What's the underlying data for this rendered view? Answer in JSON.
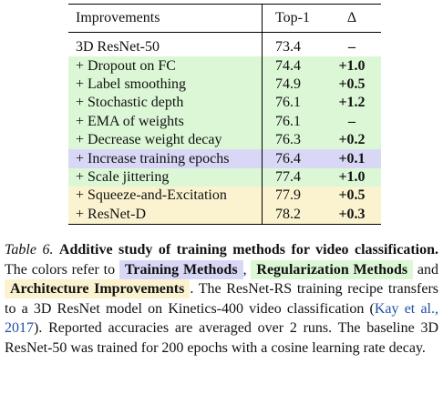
{
  "table": {
    "header": [
      "Improvements",
      "Top-1",
      "Δ"
    ],
    "rows": [
      {
        "cells": [
          "3D ResNet-50",
          73.4,
          "–"
        ],
        "color": "#ffffff"
      },
      {
        "cells": [
          "+ Dropout on FC",
          74.4,
          "+1.0"
        ],
        "color": "#dcf7d6"
      },
      {
        "cells": [
          "+ Label smoothing",
          74.9,
          "+0.5"
        ],
        "color": "#dcf7d6"
      },
      {
        "cells": [
          "+ Stochastic depth",
          76.1,
          "+1.2"
        ],
        "color": "#dcf7d6"
      },
      {
        "cells": [
          "+ EMA of weights",
          76.1,
          "–"
        ],
        "color": "#dcf7d6"
      },
      {
        "cells": [
          "+ Decrease weight decay",
          76.3,
          "+0.2"
        ],
        "color": "#dcf7d6"
      },
      {
        "cells": [
          "+ Increase training epochs",
          76.4,
          "+0.1"
        ],
        "color": "#d8d8f6"
      },
      {
        "cells": [
          "+ Scale jittering",
          77.4,
          "+1.0"
        ],
        "color": "#dcf7d6"
      },
      {
        "cells": [
          "+ Squeeze-and-Excitation",
          77.9,
          "+0.5"
        ],
        "color": "#fbf3d0"
      },
      {
        "cells": [
          "+ ResNet-D",
          78.2,
          "+0.3"
        ],
        "color": "#fbf3d0"
      }
    ]
  },
  "caption": {
    "label": "Table 6.",
    "title": "Additive study of training methods for video classification.",
    "intro": "The colors refer to",
    "legend": [
      {
        "text": "Training Methods",
        "color": "#d8d8f6"
      },
      {
        "text": "Regularization Methods",
        "color": "#dcf7d6"
      },
      {
        "text": "Architecture Improvements",
        "color": "#fbf3d0"
      }
    ],
    "comma": ",",
    "and": "and",
    "period": ".",
    "body_1": "The ResNet-RS training recipe transfers to a 3D ResNet model on Kinetics-400 video classification (",
    "citation": "Kay et al., 2017",
    "body_2": "). Reported accuracies are averaged over 2 runs. The baseline 3D ResNet-50 was trained for 200 epochs with a cosine learning rate decay."
  }
}
